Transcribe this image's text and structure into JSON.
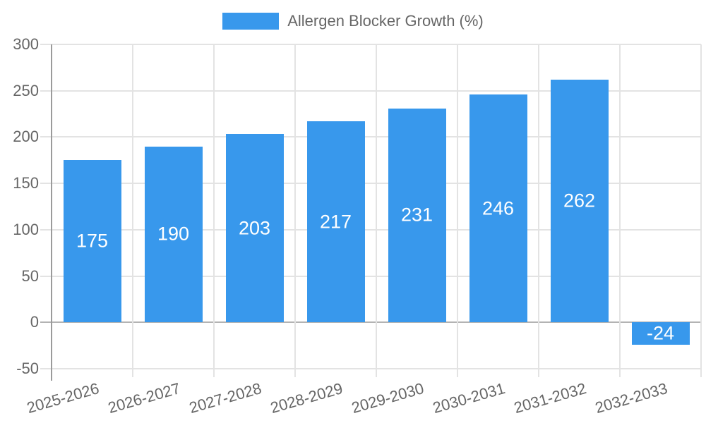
{
  "legend": {
    "label": "Allergen Blocker Growth (%)"
  },
  "chart_data": {
    "type": "bar",
    "title": "Allergen Blocker Growth (%)",
    "categories": [
      "2025-2026",
      "2026-2027",
      "2027-2028",
      "2028-2029",
      "2029-2030",
      "2030-2031",
      "2031-2032",
      "2032-2033"
    ],
    "series": [
      {
        "name": "Allergen Blocker Growth (%)",
        "values": [
          175,
          190,
          203,
          217,
          231,
          246,
          262,
          -24
        ]
      }
    ],
    "xlabel": "",
    "ylabel": "",
    "ylim": [
      -50,
      300
    ],
    "ytick_step": 50,
    "yticks": [
      300,
      250,
      200,
      150,
      100,
      50,
      0,
      -50
    ],
    "grid": true,
    "legend_position": "top",
    "value_labels": "inside-center"
  },
  "colors": {
    "bar": "#3898ec",
    "grid": "#e3e3e3",
    "zero_line": "#b3b3b3",
    "axis": "#9b9b9b",
    "text": "#666666",
    "value_label": "#ffffff",
    "background": "#ffffff"
  }
}
